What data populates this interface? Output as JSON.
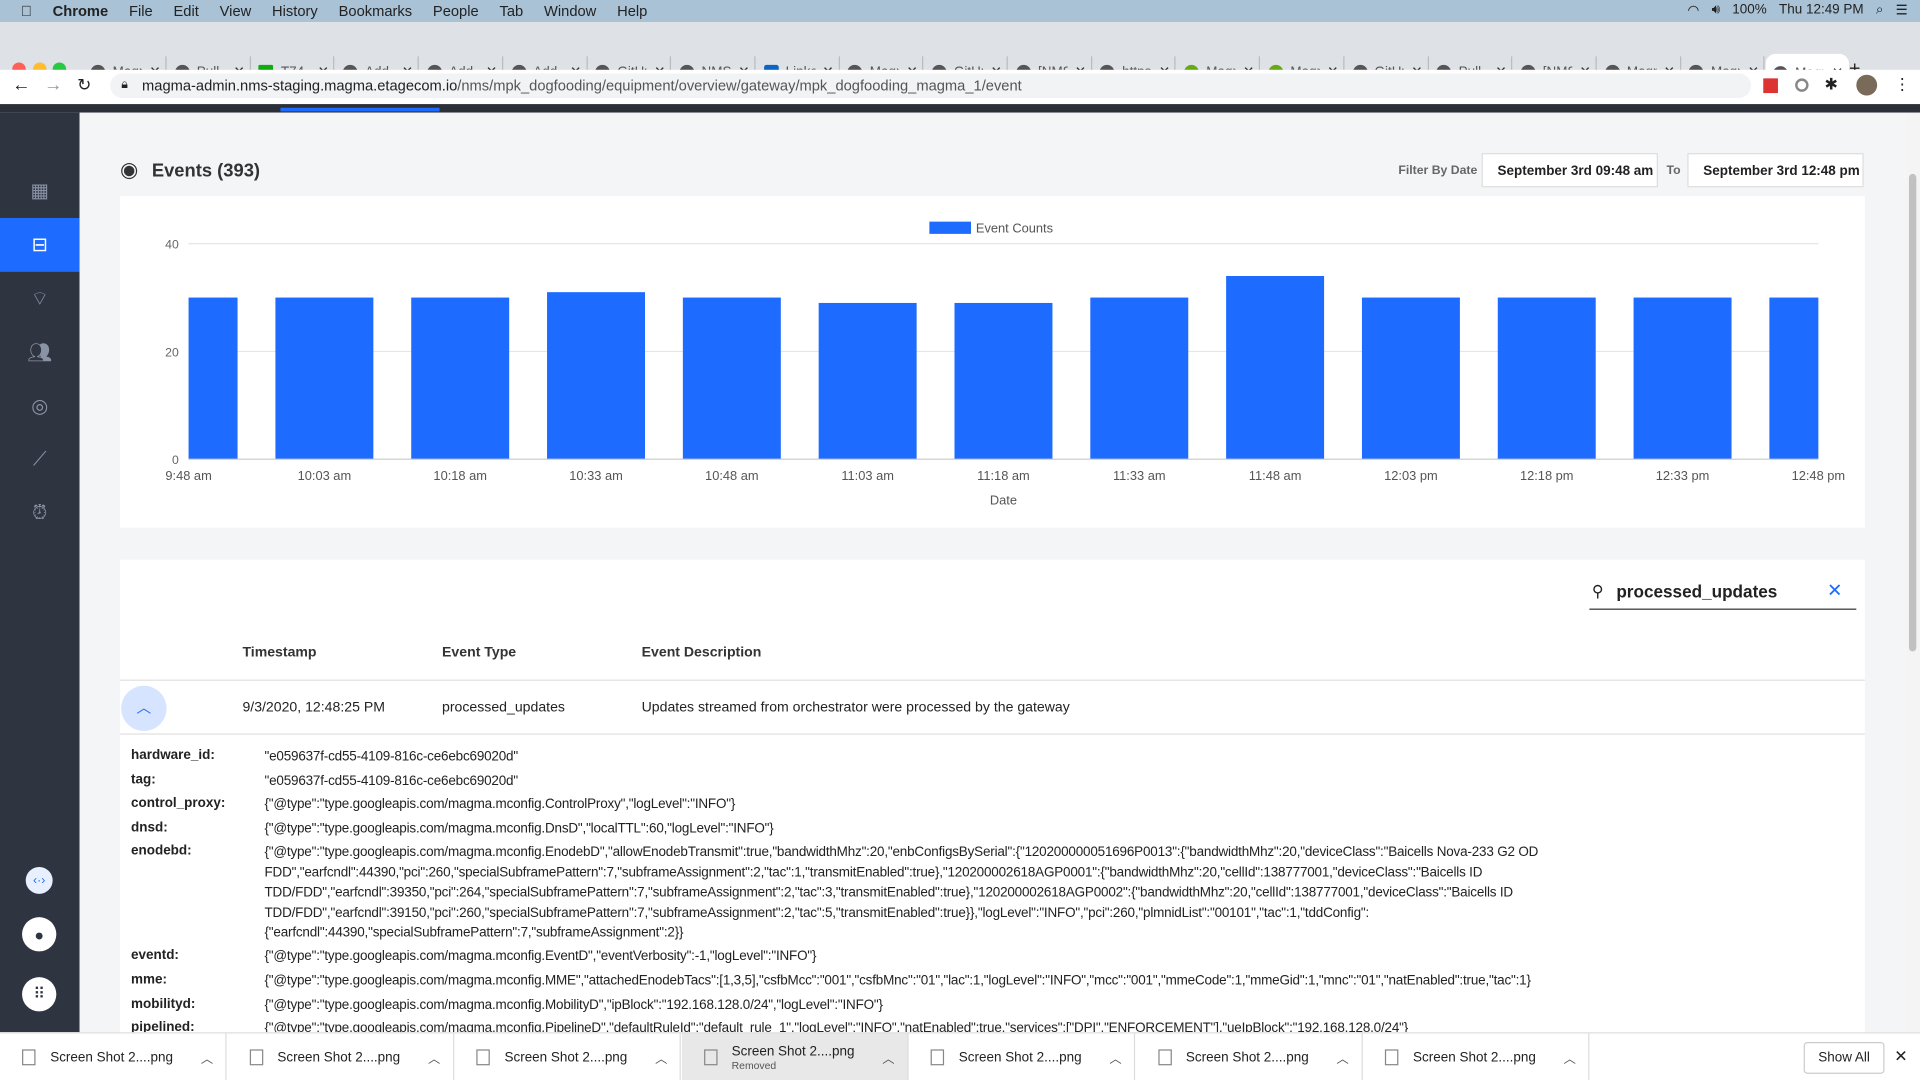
{
  "menubar": {
    "app": "Chrome",
    "items": [
      "File",
      "Edit",
      "View",
      "History",
      "Bookmarks",
      "People",
      "Tab",
      "Window",
      "Help"
    ],
    "battery": "100%",
    "clock": "Thu 12:49 PM"
  },
  "tabs": [
    {
      "title": "Magma",
      "icon": "globe-icon"
    },
    {
      "title": "Pull",
      "icon": "github-icon"
    },
    {
      "title": "T74",
      "icon": "check-icon"
    },
    {
      "title": "Add",
      "icon": "github-icon"
    },
    {
      "title": "Add",
      "icon": "github-icon"
    },
    {
      "title": "Add",
      "icon": "github-icon"
    },
    {
      "title": "GitHub",
      "icon": "github-icon"
    },
    {
      "title": "NMS",
      "icon": "tree-icon"
    },
    {
      "title": "LinkedIn",
      "icon": "linkedin-icon"
    },
    {
      "title": "Magma",
      "icon": "globe-icon"
    },
    {
      "title": "GitHub",
      "icon": "github-icon"
    },
    {
      "title": "[NMS",
      "icon": "github-icon"
    },
    {
      "title": "https",
      "icon": "globe-icon"
    },
    {
      "title": "Magma",
      "icon": "magma-icon"
    },
    {
      "title": "Magma",
      "icon": "magma-icon"
    },
    {
      "title": "GitHub",
      "icon": "github-icon"
    },
    {
      "title": "Pull",
      "icon": "github-icon"
    },
    {
      "title": "[NMS",
      "icon": "github-icon"
    },
    {
      "title": "Magma",
      "icon": "globe-icon"
    },
    {
      "title": "Magma",
      "icon": "globe-icon"
    },
    {
      "title": "Magma",
      "icon": "globe-icon",
      "active": true
    }
  ],
  "address": {
    "host": "magma-admin.nms-staging.magma.etagecom.io",
    "path": "/nms/mpk_dogfooding/equipment/overview/gateway/mpk_dogfooding_magma_1/event"
  },
  "page": {
    "title": "Events (393)",
    "filter_label": "Filter By Date",
    "from": "September 3rd 09:48 am",
    "to_label": "To",
    "to": "September 3rd 12:48 pm"
  },
  "chart_data": {
    "type": "bar",
    "categories": [
      "9:48 am",
      "10:03 am",
      "10:18 am",
      "10:33 am",
      "10:48 am",
      "11:03 am",
      "11:18 am",
      "11:33 am",
      "11:48 am",
      "12:03 pm",
      "12:18 pm",
      "12:33 pm",
      "12:48 pm"
    ],
    "series": [
      {
        "name": "Event Counts",
        "values": [
          30,
          30,
          30,
          31,
          30,
          29,
          29,
          30,
          34,
          30,
          30,
          30,
          30
        ]
      }
    ],
    "xlabel": "Date",
    "ylabel": "",
    "ylim": [
      0,
      40
    ],
    "yticks": [
      "0",
      "20",
      "40"
    ],
    "legend": "top-center",
    "color": "#1e6bff",
    "grid": true
  },
  "search": {
    "value": "processed_updates"
  },
  "table": {
    "headers": [
      "Timestamp",
      "Event Type",
      "Event Description"
    ],
    "row": {
      "timestamp": "9/3/2020, 12:48:25 PM",
      "type": "processed_updates",
      "description": "Updates streamed from orchestrator were processed by the gateway"
    },
    "details": [
      {
        "key": "hardware_id:",
        "value": "\"e059637f-cd55-4109-816c-ce6ebc69020d\""
      },
      {
        "key": "tag:",
        "value": "\"e059637f-cd55-4109-816c-ce6ebc69020d\""
      },
      {
        "key": "control_proxy:",
        "value": "{\"@type\":\"type.googleapis.com/magma.mconfig.ControlProxy\",\"logLevel\":\"INFO\"}"
      },
      {
        "key": "dnsd:",
        "value": "{\"@type\":\"type.googleapis.com/magma.mconfig.DnsD\",\"localTTL\":60,\"logLevel\":\"INFO\"}"
      },
      {
        "key": "enodebd:",
        "value": "{\"@type\":\"type.googleapis.com/magma.mconfig.EnodebD\",\"allowEnodebTransmit\":true,\"bandwidthMhz\":20,\"enbConfigsBySerial\":{\"120200000051696P0013\":{\"bandwidthMhz\":20,\"deviceClass\":\"Baicells Nova-233 G2 OD FDD\",\"earfcndl\":44390,\"pci\":260,\"specialSubframePattern\":7,\"subframeAssignment\":2,\"tac\":1,\"transmitEnabled\":true},\"120200002618AGP0001\":{\"bandwidthMhz\":20,\"cellId\":138777001,\"deviceClass\":\"Baicells ID TDD/FDD\",\"earfcndl\":39350,\"pci\":264,\"specialSubframePattern\":7,\"subframeAssignment\":2,\"tac\":3,\"transmitEnabled\":true},\"120200002618AGP0002\":{\"bandwidthMhz\":20,\"cellId\":138777001,\"deviceClass\":\"Baicells ID TDD/FDD\",\"earfcndl\":39150,\"pci\":260,\"specialSubframePattern\":7,\"subframeAssignment\":2,\"tac\":5,\"transmitEnabled\":true}},\"logLevel\":\"INFO\",\"pci\":260,\"plmnidList\":\"00101\",\"tac\":1,\"tddConfig\": {\"earfcndl\":44390,\"specialSubframePattern\":7,\"subframeAssignment\":2}}"
      },
      {
        "key": "eventd:",
        "value": "{\"@type\":\"type.googleapis.com/magma.mconfig.EventD\",\"eventVerbosity\":-1,\"logLevel\":\"INFO\"}"
      },
      {
        "key": "mme:",
        "value": "{\"@type\":\"type.googleapis.com/magma.mconfig.MME\",\"attachedEnodebTacs\":[1,3,5],\"csfbMcc\":\"001\",\"csfbMnc\":\"01\",\"lac\":1,\"logLevel\":\"INFO\",\"mcc\":\"001\",\"mmeCode\":1,\"mmeGid\":1,\"mnc\":\"01\",\"natEnabled\":true,\"tac\":1}"
      },
      {
        "key": "mobilityd:",
        "value": "{\"@type\":\"type.googleapis.com/magma.mconfig.MobilityD\",\"ipBlock\":\"192.168.128.0/24\",\"logLevel\":\"INFO\"}"
      },
      {
        "key": "pipelined:",
        "value": "{\"@type\":\"type.googleapis.com/magma.mconfig.PipelineD\",\"defaultRuleId\":\"default_rule_1\",\"logLevel\":\"INFO\",\"natEnabled\":true,\"services\":[\"DPI\",\"ENFORCEMENT\"],\"ueIpBlock\":\"192.168.128.0/24\"}"
      }
    ]
  },
  "downloads": {
    "items": [
      {
        "name": "Screen Shot 2....png"
      },
      {
        "name": "Screen Shot 2....png"
      },
      {
        "name": "Screen Shot 2....png"
      },
      {
        "name": "Screen Shot 2....png",
        "status": "Removed"
      },
      {
        "name": "Screen Shot 2....png"
      },
      {
        "name": "Screen Shot 2....png"
      },
      {
        "name": "Screen Shot 2....png"
      }
    ],
    "show_all": "Show All"
  }
}
